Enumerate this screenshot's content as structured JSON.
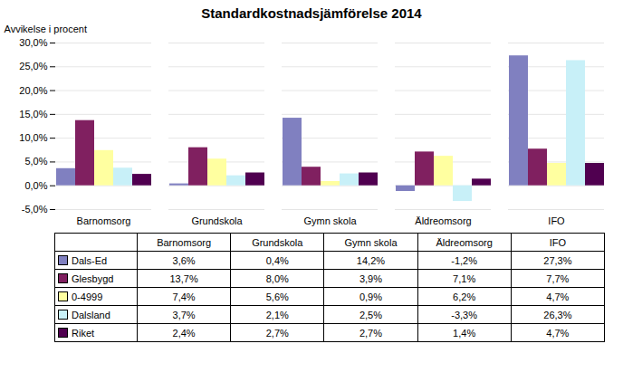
{
  "chart_data": {
    "type": "bar",
    "title": "Standardkostnadsjämförelse 2014",
    "ylabel": "Avvikelse i procent",
    "categories": [
      "Barnomsorg",
      "Grundskola",
      "Gymn skola",
      "Äldreomsorg",
      "IFO"
    ],
    "series": [
      {
        "name": "Dals-Ed",
        "color": "#8080C0",
        "values": [
          3.6,
          0.4,
          14.2,
          -1.2,
          27.3
        ],
        "value_labels": [
          "3,6%",
          "0,4%",
          "14,2%",
          "-1,2%",
          "27,3%"
        ]
      },
      {
        "name": "Glesbygd",
        "color": "#802060",
        "values": [
          13.7,
          8.0,
          3.9,
          7.1,
          7.7
        ],
        "value_labels": [
          "13,7%",
          "8,0%",
          "3,9%",
          "7,1%",
          "7,7%"
        ]
      },
      {
        "name": "0-4999",
        "color": "#FFFFA0",
        "values": [
          7.4,
          5.6,
          0.9,
          6.2,
          4.7
        ],
        "value_labels": [
          "7,4%",
          "5,6%",
          "0,9%",
          "6,2%",
          "4,7%"
        ]
      },
      {
        "name": "Dalsland",
        "color": "#C8F0F8",
        "values": [
          3.7,
          2.1,
          2.5,
          -3.3,
          26.3
        ],
        "value_labels": [
          "3,7%",
          "2,1%",
          "2,5%",
          "-3,3%",
          "26,3%"
        ]
      },
      {
        "name": "Riket",
        "color": "#500050",
        "values": [
          2.4,
          2.7,
          2.7,
          1.4,
          4.7
        ],
        "value_labels": [
          "2,4%",
          "2,7%",
          "2,7%",
          "1,4%",
          "4,7%"
        ]
      }
    ],
    "ylim": [
      -5.0,
      30.0
    ],
    "yticks": [
      {
        "value": -5.0,
        "label": "-5,0%"
      },
      {
        "value": 0.0,
        "label": "0,0%"
      },
      {
        "value": 5.0,
        "label": "5,0%"
      },
      {
        "value": 10.0,
        "label": "10,0%"
      },
      {
        "value": 15.0,
        "label": "15,0%"
      },
      {
        "value": 20.0,
        "label": "20,0%"
      },
      {
        "value": 25.0,
        "label": "25,0%"
      },
      {
        "value": 30.0,
        "label": "30,0%"
      }
    ],
    "grid": true
  }
}
